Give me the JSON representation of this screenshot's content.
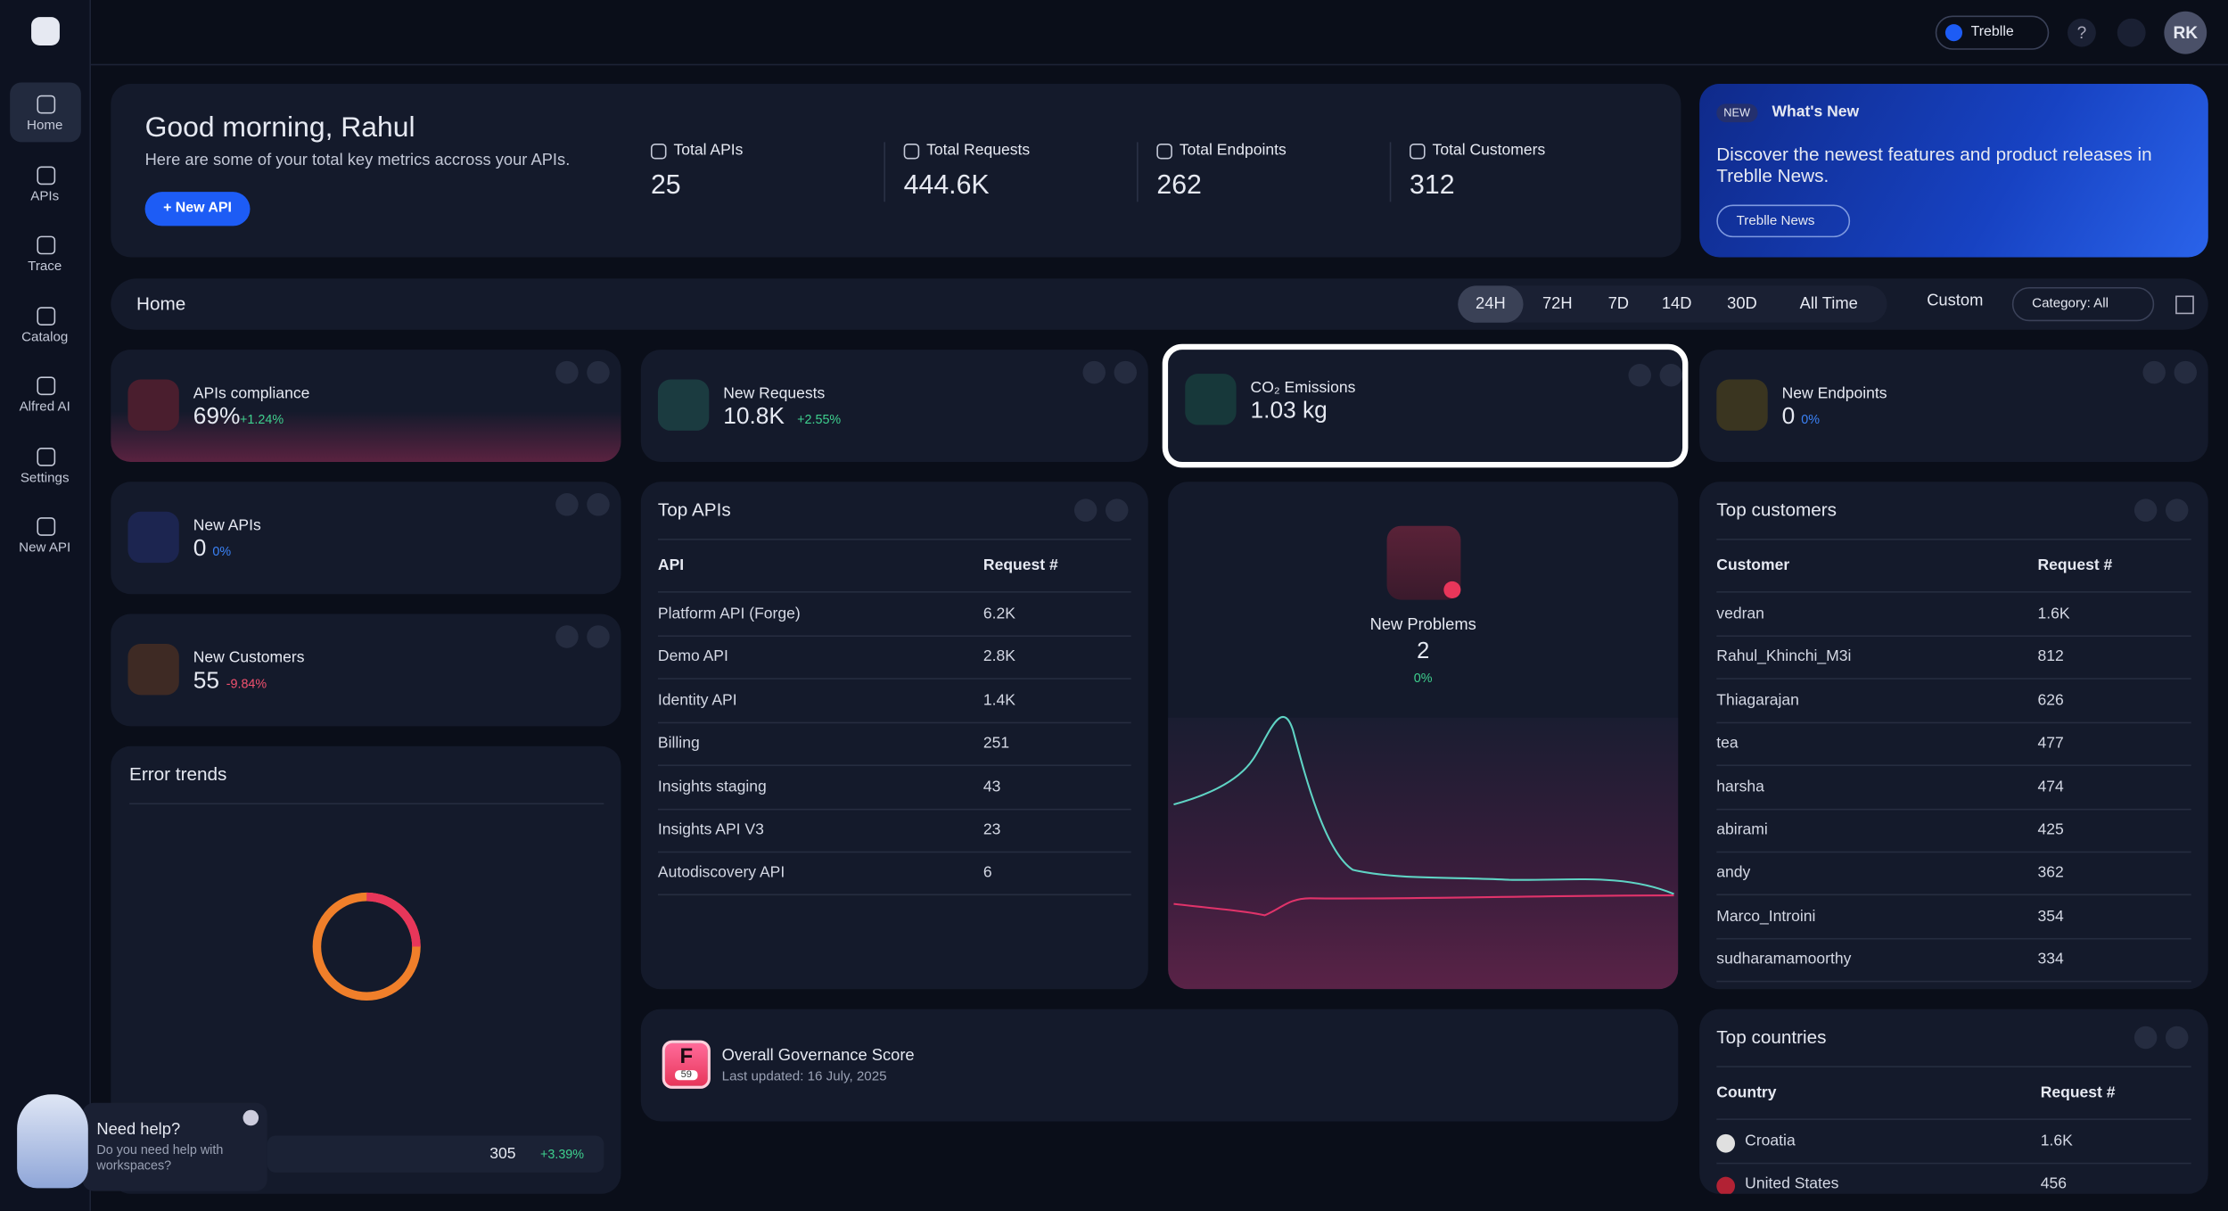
{
  "topbar": {
    "workspace": "Treblle",
    "avatar": "RK"
  },
  "sidebar": [
    "Home",
    "APIs",
    "Trace",
    "Catalog",
    "Alfred AI",
    "Settings",
    "New API"
  ],
  "header": {
    "greeting": "Good morning, Rahul",
    "subtitle": "Here are some of your total key metrics accross your APIs.",
    "button": "+ New API",
    "metrics": [
      {
        "label": "Total APIs",
        "value": "25"
      },
      {
        "label": "Total Requests",
        "value": "444.6K"
      },
      {
        "label": "Total Endpoints",
        "value": "262"
      },
      {
        "label": "Total Customers",
        "value": "312"
      }
    ]
  },
  "whats_new": {
    "badge": "NEW",
    "title": "What's New",
    "text": "Discover the newest features and product releases in Treblle News.",
    "button": "Treblle News"
  },
  "toolbar": {
    "title": "Home",
    "ranges": [
      "24H",
      "72H",
      "7D",
      "14D",
      "30D",
      "All Time"
    ],
    "custom": "Custom",
    "category": "Category: All"
  },
  "stat_cards": [
    {
      "title": "APIs compliance",
      "value": "69%",
      "change": "+1.24%"
    },
    {
      "title": "New Requests",
      "value": "10.8K",
      "change": "+2.55%"
    },
    {
      "title": "CO₂ Emissions",
      "value": "1.03 kg"
    },
    {
      "title": "New Endpoints",
      "value": "0",
      "change": "0%"
    },
    {
      "title": "New APIs",
      "value": "0",
      "change": "0%"
    },
    {
      "title": "New Customers",
      "value": "55",
      "change": "-9.84%"
    }
  ],
  "error_trends": {
    "title": "Error trends",
    "value": "305",
    "change": "+3.39%"
  },
  "top_apis": {
    "title": "Top APIs",
    "columns": [
      "API",
      "Request #"
    ],
    "rows": [
      [
        "Platform API (Forge)",
        "6.2K"
      ],
      [
        "Demo API",
        "2.8K"
      ],
      [
        "Identity API",
        "1.4K"
      ],
      [
        "Billing",
        "251"
      ],
      [
        "Insights staging",
        "43"
      ],
      [
        "Insights API V3",
        "23"
      ],
      [
        "Autodiscovery API",
        "6"
      ]
    ]
  },
  "problems": {
    "title": "New Problems",
    "value": "2",
    "change": "0%"
  },
  "top_customers": {
    "title": "Top customers",
    "columns": [
      "Customer",
      "Request #"
    ],
    "rows": [
      [
        "vedran",
        "1.6K"
      ],
      [
        "Rahul_Khinchi_M3i",
        "812"
      ],
      [
        "Thiagarajan",
        "626"
      ],
      [
        "tea",
        "477"
      ],
      [
        "harsha",
        "474"
      ],
      [
        "abirami",
        "425"
      ],
      [
        "andy",
        "362"
      ],
      [
        "Marco_Introini",
        "354"
      ],
      [
        "sudharamamoorthy",
        "334"
      ]
    ]
  },
  "governance": {
    "grade": "F",
    "score": "59",
    "title": "Overall Governance Score",
    "updated": "Last updated: 16 July, 2025"
  },
  "top_countries": {
    "title": "Top countries",
    "columns": [
      "Country",
      "Request #"
    ],
    "rows": [
      [
        "Croatia",
        "1.6K"
      ],
      [
        "United States",
        "456"
      ]
    ]
  },
  "help": {
    "title": "Need help?",
    "text": "Do you need help with workspaces?"
  }
}
